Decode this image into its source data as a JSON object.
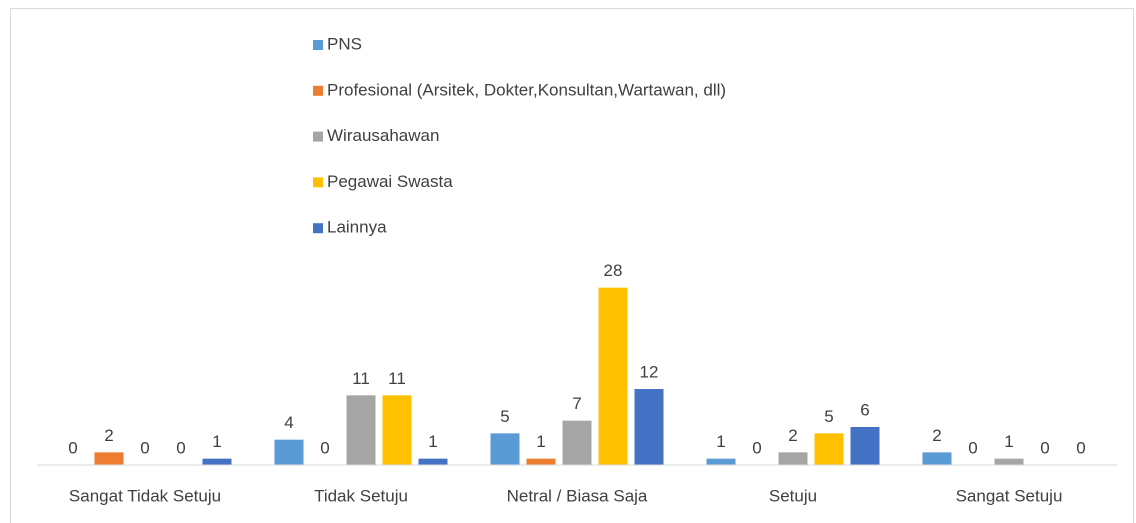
{
  "chart_data": {
    "type": "bar",
    "categories": [
      "Sangat Tidak Setuju",
      "Tidak Setuju",
      "Netral / Biasa Saja",
      "Setuju",
      "Sangat Setuju"
    ],
    "series": [
      {
        "name": "PNS",
        "color": "#5b9bd5",
        "values": [
          0,
          4,
          5,
          1,
          2
        ]
      },
      {
        "name": "Profesional (Arsitek, Dokter,Konsultan,Wartawan, dll)",
        "color": "#ed7d31",
        "values": [
          2,
          0,
          1,
          0,
          0
        ]
      },
      {
        "name": "Wirausahawan",
        "color": "#a5a5a5",
        "values": [
          0,
          11,
          7,
          2,
          1
        ]
      },
      {
        "name": "Pegawai Swasta",
        "color": "#ffc000",
        "values": [
          0,
          11,
          28,
          5,
          0
        ]
      },
      {
        "name": "Lainnya",
        "color": "#4472c4",
        "values": [
          1,
          1,
          12,
          6,
          0
        ]
      }
    ],
    "ylim": [
      0,
      30
    ],
    "legend": "top"
  }
}
